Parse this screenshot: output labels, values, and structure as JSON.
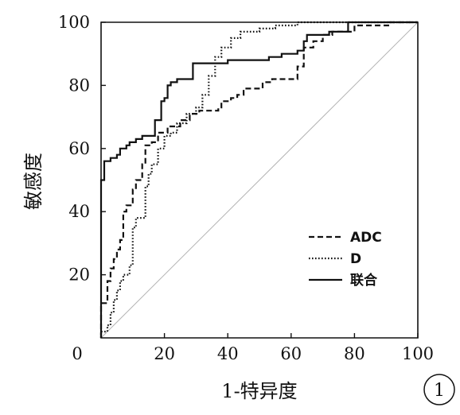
{
  "chart_data": {
    "type": "line",
    "title": "",
    "xlabel": "1-特异度",
    "ylabel": "敏感度",
    "xlim": [
      0,
      100
    ],
    "ylim": [
      0,
      100
    ],
    "xticks": [
      0,
      20,
      40,
      60,
      80,
      100
    ],
    "yticks": [
      0,
      20,
      40,
      60,
      80,
      100
    ],
    "grid": false,
    "legend_position": "bottom-right",
    "reference_line": {
      "from": [
        0,
        0
      ],
      "to": [
        100,
        100
      ],
      "color": "#b3b3b3"
    },
    "series": [
      {
        "name": "ADC",
        "style": "dashed",
        "color": "#111111",
        "points": [
          [
            0,
            0
          ],
          [
            0,
            11
          ],
          [
            2,
            11
          ],
          [
            2,
            18
          ],
          [
            3,
            18
          ],
          [
            3,
            22
          ],
          [
            4,
            22
          ],
          [
            4,
            25
          ],
          [
            5,
            25
          ],
          [
            5,
            28
          ],
          [
            6,
            28
          ],
          [
            6,
            31
          ],
          [
            7,
            31
          ],
          [
            7,
            40
          ],
          [
            8,
            40
          ],
          [
            8,
            42
          ],
          [
            10,
            42
          ],
          [
            10,
            47
          ],
          [
            11,
            47
          ],
          [
            11,
            50
          ],
          [
            13,
            50
          ],
          [
            13,
            55
          ],
          [
            14,
            55
          ],
          [
            14,
            61
          ],
          [
            16,
            61
          ],
          [
            16,
            62
          ],
          [
            18,
            62
          ],
          [
            18,
            65
          ],
          [
            21,
            65
          ],
          [
            21,
            67
          ],
          [
            25,
            67
          ],
          [
            25,
            69
          ],
          [
            28,
            69
          ],
          [
            28,
            71
          ],
          [
            31,
            71
          ],
          [
            31,
            72
          ],
          [
            37,
            72
          ],
          [
            37,
            73
          ],
          [
            38,
            73
          ],
          [
            38,
            75
          ],
          [
            41,
            75
          ],
          [
            41,
            76
          ],
          [
            43,
            76
          ],
          [
            43,
            77
          ],
          [
            45,
            77
          ],
          [
            45,
            79
          ],
          [
            51,
            79
          ],
          [
            51,
            81
          ],
          [
            54,
            81
          ],
          [
            54,
            82
          ],
          [
            62,
            82
          ],
          [
            62,
            86
          ],
          [
            64,
            86
          ],
          [
            64,
            92
          ],
          [
            67,
            92
          ],
          [
            67,
            94
          ],
          [
            70,
            94
          ],
          [
            70,
            96
          ],
          [
            73,
            96
          ],
          [
            73,
            97
          ],
          [
            80,
            97
          ],
          [
            80,
            99
          ],
          [
            91,
            99
          ],
          [
            91,
            100
          ],
          [
            100,
            100
          ]
        ]
      },
      {
        "name": "D",
        "style": "dotted",
        "color": "#111111",
        "points": [
          [
            0,
            0
          ],
          [
            0,
            2
          ],
          [
            2,
            2
          ],
          [
            2,
            4
          ],
          [
            3,
            4
          ],
          [
            3,
            8
          ],
          [
            4,
            8
          ],
          [
            4,
            12
          ],
          [
            5,
            12
          ],
          [
            5,
            15
          ],
          [
            6,
            15
          ],
          [
            6,
            18
          ],
          [
            7,
            18
          ],
          [
            7,
            20
          ],
          [
            9,
            20
          ],
          [
            9,
            23
          ],
          [
            10,
            23
          ],
          [
            10,
            35
          ],
          [
            11,
            35
          ],
          [
            11,
            38
          ],
          [
            14,
            38
          ],
          [
            14,
            48
          ],
          [
            15,
            48
          ],
          [
            15,
            52
          ],
          [
            16,
            52
          ],
          [
            16,
            55
          ],
          [
            18,
            55
          ],
          [
            18,
            60
          ],
          [
            20,
            60
          ],
          [
            20,
            64
          ],
          [
            22,
            64
          ],
          [
            22,
            65
          ],
          [
            24,
            65
          ],
          [
            24,
            68
          ],
          [
            27,
            68
          ],
          [
            27,
            71
          ],
          [
            30,
            71
          ],
          [
            30,
            73
          ],
          [
            32,
            73
          ],
          [
            32,
            77
          ],
          [
            34,
            77
          ],
          [
            34,
            83
          ],
          [
            36,
            83
          ],
          [
            36,
            89
          ],
          [
            38,
            89
          ],
          [
            38,
            92
          ],
          [
            41,
            92
          ],
          [
            41,
            95
          ],
          [
            44,
            95
          ],
          [
            44,
            97
          ],
          [
            50,
            97
          ],
          [
            50,
            98
          ],
          [
            55,
            98
          ],
          [
            55,
            99
          ],
          [
            62,
            99
          ],
          [
            62,
            100
          ],
          [
            100,
            100
          ]
        ]
      },
      {
        "name": "联合",
        "style": "solid",
        "color": "#111111",
        "points": [
          [
            0,
            0
          ],
          [
            0,
            50
          ],
          [
            1,
            50
          ],
          [
            1,
            56
          ],
          [
            3,
            56
          ],
          [
            3,
            57
          ],
          [
            5,
            57
          ],
          [
            5,
            58
          ],
          [
            6,
            58
          ],
          [
            6,
            60
          ],
          [
            8,
            60
          ],
          [
            8,
            61
          ],
          [
            9,
            61
          ],
          [
            9,
            62
          ],
          [
            11,
            62
          ],
          [
            11,
            63
          ],
          [
            13,
            63
          ],
          [
            13,
            64
          ],
          [
            17,
            64
          ],
          [
            17,
            69
          ],
          [
            19,
            69
          ],
          [
            19,
            75
          ],
          [
            20,
            75
          ],
          [
            20,
            76
          ],
          [
            21,
            76
          ],
          [
            21,
            80
          ],
          [
            22,
            80
          ],
          [
            22,
            81
          ],
          [
            24,
            81
          ],
          [
            24,
            82
          ],
          [
            29,
            82
          ],
          [
            29,
            87
          ],
          [
            40,
            87
          ],
          [
            40,
            88
          ],
          [
            53,
            88
          ],
          [
            53,
            89
          ],
          [
            57,
            89
          ],
          [
            57,
            90
          ],
          [
            62,
            90
          ],
          [
            62,
            91
          ],
          [
            64,
            91
          ],
          [
            64,
            94
          ],
          [
            65,
            94
          ],
          [
            65,
            96
          ],
          [
            72,
            96
          ],
          [
            72,
            97
          ],
          [
            78,
            97
          ],
          [
            78,
            100
          ],
          [
            100,
            100
          ]
        ]
      }
    ]
  },
  "figure_badge": "1"
}
